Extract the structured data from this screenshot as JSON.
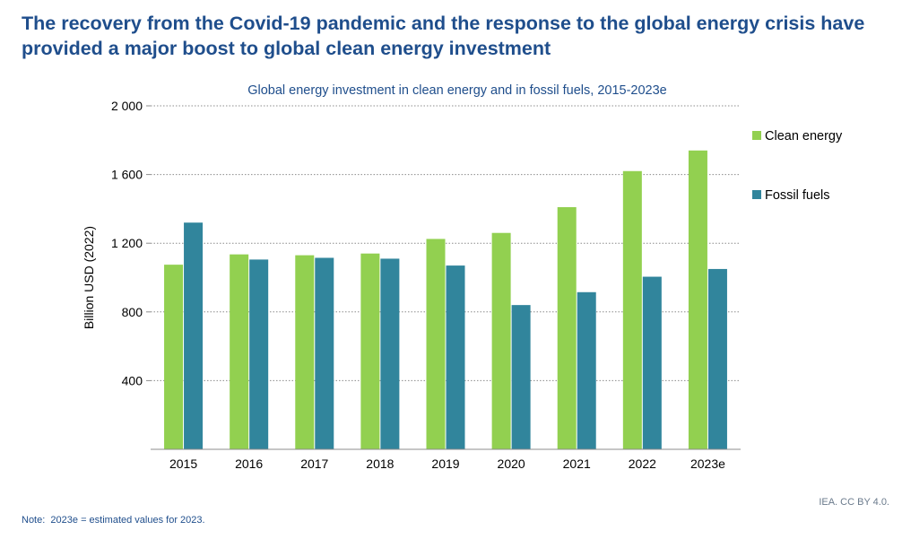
{
  "headline": {
    "line1": "The recovery from the Covid-19 pandemic and the response to the global energy crisis have",
    "line2": "provided a major boost to global clean energy investment"
  },
  "chart_data": {
    "type": "bar",
    "title": "Global energy investment in clean energy and in fossil fuels, 2015-2023e",
    "ylabel": "Billion USD (2022)",
    "xlabel": "",
    "categories": [
      "2015",
      "2016",
      "2017",
      "2018",
      "2019",
      "2020",
      "2021",
      "2022",
      "2023e"
    ],
    "series": [
      {
        "name": "Clean energy",
        "color": "#92d050",
        "values": [
          1075,
          1135,
          1130,
          1140,
          1225,
          1260,
          1410,
          1620,
          1740
        ]
      },
      {
        "name": "Fossil fuels",
        "color": "#31859c",
        "values": [
          1320,
          1105,
          1115,
          1110,
          1070,
          840,
          915,
          1005,
          1050
        ]
      }
    ],
    "ylim": [
      0,
      2000
    ],
    "yticks": [
      400,
      800,
      1200,
      1600,
      2000
    ],
    "ytick_labels": [
      "400",
      "800",
      "1 200",
      "1 600",
      "2 000"
    ],
    "grid": true,
    "legend_position": "right"
  },
  "footer": {
    "credit": "IEA. CC BY 4.0.",
    "note_label": "Note:",
    "note_text": "2023e = estimated values for 2023."
  }
}
